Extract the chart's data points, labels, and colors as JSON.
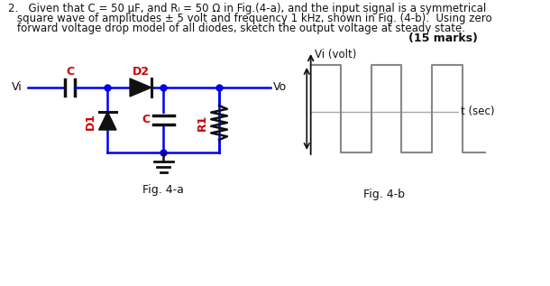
{
  "title_line1": "2.   Given that C = 50 μF, and Rₗ = 50 Ω in Fig.(4-a), and the input signal is a symmetrical",
  "title_line2": "square wave of amplitudes ± 5 volt and frequency 1 kHz, shown in Fig. (4-b).  Using zero",
  "title_line3": "forward voltage drop model of all diodes, sketch the output voltage at steady state.",
  "marks_text": "(15 marks)",
  "fig4a_label": "Fig. 4-a",
  "fig4b_label": "Fig. 4-b",
  "circuit_color": "#0000ee",
  "comp_color": "#111111",
  "label_color": "#cc0000",
  "text_color": "#111111",
  "bg_color": "#ffffff",
  "Vi_label": "Vi",
  "Vo_label": "Vo",
  "Vi_volt_label": "Vi (volt)",
  "t_sec_label": "t (sec)",
  "C_label": "C",
  "D2_label": "D2",
  "D1_label": "D1",
  "C2_label": "C",
  "R1_label": "R1"
}
